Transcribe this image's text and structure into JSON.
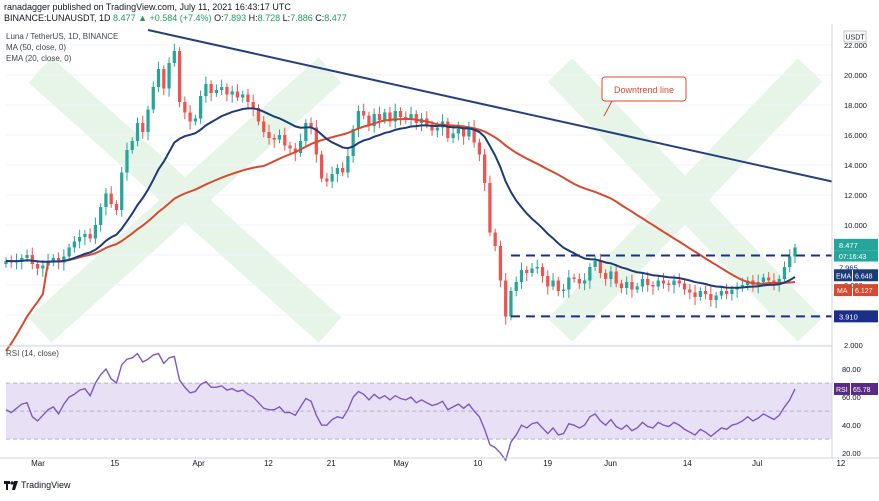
{
  "header": {
    "line1": "ranadagger published on TradingView.com, July 11, 2021 16:43:17 UTC",
    "symbol": "BINANCE:LUNAUSDT, 1D",
    "price": "8.477",
    "change": "▲ +0.584 (+7.4%)",
    "o_label": "O:",
    "o_value": "7.893",
    "h_label": "H:",
    "h_value": "8.728",
    "l_label": "L:",
    "l_value": "7.886",
    "c_label": "C:",
    "c_value": "8.477"
  },
  "legend": {
    "title": "Luna / TetherUS, 1D, BINANCE",
    "ma": "MA (50, close, 0)",
    "ema": "EMA (20, close, 0)"
  },
  "rsi_legend": "RSI (14, close)",
  "currency": "USDT",
  "annotation": "Downtrend line",
  "price_tags": {
    "last": "8.477",
    "countdown": "07:16:43",
    "support_upper": "7.965",
    "ema_label": "EMA",
    "ema_value": "6.648",
    "ma_label": "MA",
    "ma_value": "6.127",
    "support_lower": "3.910",
    "rsi_label": "RSI",
    "rsi_value": "65.78"
  },
  "brand": "TradingView",
  "colors": {
    "up": "#26a69a",
    "down": "#ef5350",
    "candle_up_fill": "#26a69a",
    "ema": "#1b3b7a",
    "ma": "#d84a2e",
    "trend": "#26407a",
    "rsi": "#7e57c2",
    "rsi_band": "#e8e1f5",
    "accent": "#5b2a86"
  },
  "chart_data": [
    {
      "type": "candlestick",
      "title": "Luna / TetherUS, 1D, BINANCE",
      "x_ticks": [
        "Mar",
        "15",
        "Apr",
        "12",
        "21",
        "May",
        "10",
        "19",
        "Jun",
        "14",
        "Jul",
        "12"
      ],
      "y_ticks": [
        "2.000",
        "4.000",
        "6.000",
        "8.000",
        "10.000",
        "12.000",
        "14.000",
        "16.000",
        "18.000",
        "20.000",
        "22.000"
      ],
      "ylim": [
        2,
        23
      ],
      "close": [
        7.6,
        7.5,
        7.6,
        7.8,
        8.0,
        7.4,
        7.1,
        7.3,
        7.6,
        7.8,
        7.5,
        7.9,
        8.5,
        8.9,
        9.2,
        9.4,
        9.1,
        10.0,
        11.2,
        12.1,
        11.4,
        11.0,
        13.5,
        15.0,
        15.6,
        16.8,
        16.2,
        17.7,
        19.2,
        20.4,
        19.1,
        20.8,
        21.6,
        18.2,
        17.5,
        16.9,
        17.1,
        18.6,
        19.4,
        18.8,
        19.0,
        19.2,
        18.7,
        18.9,
        18.5,
        18.7,
        18.2,
        17.8,
        16.9,
        16.2,
        15.8,
        15.7,
        16.0,
        15.3,
        15.1,
        14.8,
        15.6,
        16.8,
        16.5,
        14.7,
        13.1,
        12.9,
        13.4,
        13.8,
        13.5,
        14.6,
        16.4,
        17.6,
        17.3,
        16.6,
        17.4,
        17.0,
        17.5,
        16.9,
        17.6,
        17.2,
        17.0,
        17.4,
        16.8,
        17.1,
        16.7,
        16.3,
        16.5,
        16.9,
        15.8,
        16.1,
        16.4,
        15.9,
        16.5,
        15.5,
        14.7,
        12.8,
        9.5,
        8.6,
        6.3,
        3.9,
        5.6,
        6.2,
        7.0,
        6.8,
        7.1,
        7.2,
        6.6,
        5.9,
        6.3,
        5.6,
        5.7,
        6.5,
        6.4,
        6.1,
        6.3,
        7.2,
        7.6,
        6.8,
        6.4,
        6.9,
        6.1,
        5.8,
        6.2,
        5.7,
        5.9,
        6.4,
        6.0,
        5.9,
        6.3,
        6.1,
        6.0,
        6.3,
        6.1,
        5.7,
        5.5,
        5.2,
        5.6,
        5.4,
        5.0,
        5.3,
        5.6,
        5.4,
        5.7,
        5.8,
        6.0,
        6.3,
        6.0,
        6.2,
        6.5,
        6.3,
        6.1,
        6.4,
        7.2,
        7.9,
        8.5
      ],
      "ma50_last": 6.127,
      "ema20_last": 6.648,
      "last_price": 8.477,
      "horizontal_levels": [
        7.965,
        3.91
      ],
      "trendline": {
        "from": [
          0,
          23.0
        ],
        "to": "right edge ~12.9"
      }
    },
    {
      "type": "line",
      "title": "RSI (14, close)",
      "y_ticks": [
        "20.00",
        "40.00",
        "60.00",
        "80.00"
      ],
      "ylim": [
        18,
        95
      ],
      "band": [
        30,
        70
      ],
      "last": 65.78,
      "values": [
        51,
        49,
        52,
        55,
        56,
        46,
        43,
        47,
        51,
        53,
        48,
        55,
        60,
        62,
        65,
        66,
        61,
        70,
        76,
        80,
        73,
        70,
        83,
        87,
        88,
        91,
        85,
        87,
        90,
        91,
        84,
        88,
        89,
        72,
        67,
        63,
        64,
        69,
        71,
        67,
        67,
        68,
        65,
        66,
        64,
        65,
        62,
        60,
        56,
        52,
        51,
        51,
        53,
        49,
        49,
        47,
        53,
        59,
        57,
        47,
        40,
        40,
        44,
        46,
        45,
        51,
        60,
        64,
        62,
        58,
        62,
        59,
        61,
        58,
        61,
        59,
        58,
        60,
        56,
        58,
        56,
        54,
        55,
        57,
        51,
        53,
        55,
        52,
        55,
        50,
        46,
        37,
        26,
        24,
        20,
        15,
        28,
        33,
        40,
        38,
        41,
        42,
        38,
        34,
        38,
        33,
        34,
        41,
        40,
        38,
        40,
        46,
        48,
        43,
        40,
        44,
        39,
        37,
        40,
        36,
        38,
        42,
        39,
        38,
        42,
        40,
        39,
        42,
        40,
        37,
        35,
        33,
        37,
        35,
        32,
        35,
        38,
        37,
        40,
        41,
        43,
        46,
        43,
        45,
        48,
        46,
        44,
        47,
        53,
        58,
        65.78
      ]
    }
  ]
}
